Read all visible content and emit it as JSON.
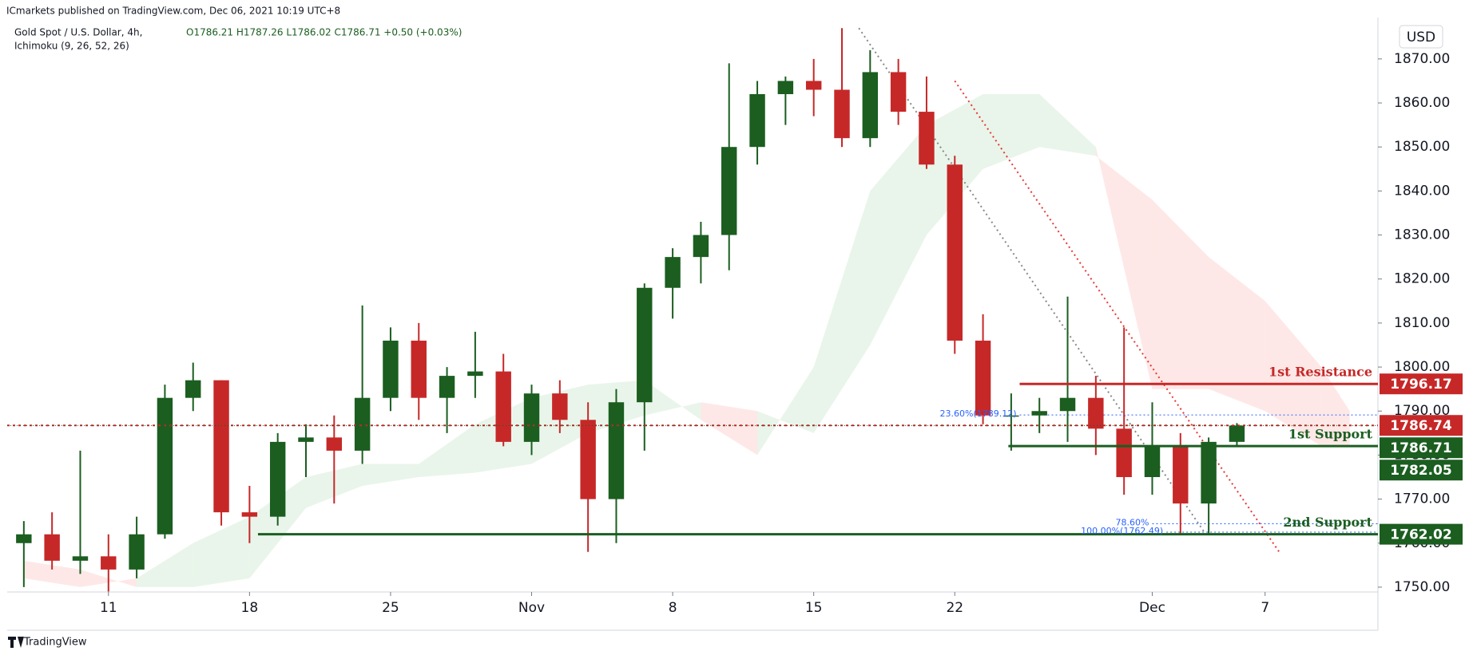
{
  "header": {
    "published": "ICmarkets published on TradingView.com, Dec 06, 2021 10:19 UTC+8",
    "symbol": "Gold Spot / U.S. Dollar, 4h,",
    "indicator": "Ichimoku (9, 26, 52, 26)",
    "ohlc_text": "O1786.21 H1787.26 L1786.02 C1786.71 +0.50 (+0.03%)",
    "currency": "USD",
    "footer": "TradingView"
  },
  "chart_data": {
    "type": "candlestick",
    "up_color": "#1b5e20",
    "down_color": "#c62828",
    "x": [
      -3,
      -2,
      -1,
      0,
      1,
      2,
      3,
      4,
      5,
      6,
      7,
      8,
      9,
      10,
      11,
      12,
      13,
      14,
      15,
      16,
      17,
      18,
      19,
      20,
      21,
      22,
      23,
      24,
      25,
      26,
      27,
      28,
      29,
      30,
      31,
      32,
      33,
      34,
      35,
      36,
      37,
      38,
      39,
      40
    ],
    "open": [
      1760,
      1762,
      1756,
      1757,
      1754,
      1762,
      1793,
      1797,
      1767,
      1766,
      1783,
      1784,
      1781,
      1793,
      1806,
      1793,
      1798,
      1799,
      1783,
      1794,
      1788,
      1770,
      1792,
      1818,
      1825,
      1830,
      1850,
      1862,
      1865,
      1863,
      1852,
      1867,
      1858,
      1846,
      1806,
      1789,
      1789,
      1790,
      1793,
      1786,
      1775,
      1782,
      1769,
      1783
    ],
    "high": [
      1765,
      1767,
      1781,
      1762,
      1766,
      1796,
      1801,
      1797,
      1773,
      1785,
      1787,
      1789,
      1814,
      1809,
      1810,
      1800,
      1808,
      1803,
      1796,
      1797,
      1792,
      1795,
      1819,
      1827,
      1833,
      1869,
      1865,
      1866,
      1870,
      1877,
      1872,
      1870,
      1866,
      1848,
      1812,
      1794,
      1793,
      1816,
      1798,
      1809,
      1792,
      1785,
      1784,
      1787.26
    ],
    "low": [
      1750,
      1754,
      1753,
      1749,
      1752,
      1761,
      1790,
      1764,
      1760,
      1764,
      1775,
      1769,
      1778,
      1790,
      1788,
      1785,
      1793,
      1782,
      1780,
      1785,
      1758,
      1760,
      1781,
      1811,
      1819,
      1822,
      1846,
      1855,
      1857,
      1850,
      1850,
      1855,
      1845,
      1803,
      1787,
      1781,
      1785,
      1783,
      1780,
      1771,
      1771,
      1762,
      1762,
      1782
    ],
    "close": [
      1762,
      1756,
      1757,
      1754,
      1762,
      1793,
      1797,
      1767,
      1766,
      1783,
      1784,
      1781,
      1793,
      1806,
      1793,
      1798,
      1799,
      1783,
      1794,
      1788,
      1770,
      1792,
      1818,
      1825,
      1830,
      1850,
      1862,
      1865,
      1863,
      1852,
      1867,
      1858,
      1846,
      1806,
      1789,
      1789,
      1790,
      1793,
      1786,
      1775,
      1782,
      1769,
      1783,
      1786.71
    ],
    "cloud": {
      "x": [
        -3,
        -1,
        1,
        3,
        5,
        7,
        9,
        11,
        13,
        15,
        17,
        19,
        21,
        23,
        25,
        27,
        29,
        31,
        33,
        35,
        37,
        39,
        41,
        43,
        44
      ],
      "span_a": [
        1752,
        1750,
        1752,
        1760,
        1766,
        1775,
        1778,
        1778,
        1787,
        1793,
        1796,
        1797,
        1788,
        1780,
        1800,
        1840,
        1855,
        1862,
        1862,
        1850,
        1795,
        1795,
        1790,
        1782,
        1782
      ],
      "span_b": [
        1756,
        1754,
        1750,
        1750,
        1752,
        1768,
        1773,
        1775,
        1776,
        1778,
        1785,
        1789,
        1792,
        1790,
        1785,
        1805,
        1830,
        1845,
        1850,
        1848,
        1838,
        1825,
        1815,
        1800,
        1790
      ],
      "up_color": "rgba(76,175,80,0.12)",
      "down_color": "rgba(244,67,54,0.12)"
    },
    "levels": [
      {
        "name": "1st Resistance",
        "price": 1796.17,
        "from": 32.3,
        "color": "#c62828",
        "style": "solid"
      },
      {
        "price": 1786.74,
        "color": "#c62828",
        "style": "dotted"
      },
      {
        "name": "1st Support",
        "price": 1782.05,
        "from": 31.9,
        "color": "#1b5e20",
        "style": "solid"
      },
      {
        "name": "2nd Support",
        "price": 1762.02,
        "from": 5.3,
        "color": "#1b5e20",
        "style": "solid"
      }
    ],
    "fib": [
      {
        "name": "23.60%(1789.12)",
        "price": 1789.12,
        "from": 32.3
      },
      {
        "name": "78.60%",
        "price": 1764.4,
        "from": 37.0
      },
      {
        "name": "100.00%(1762.49)",
        "price": 1762.49,
        "from": 37.5
      }
    ],
    "trendlines": [
      {
        "from": [
          30.0,
          1865
        ],
        "to": [
          41.5,
          1758
        ],
        "color": "#e53935"
      },
      {
        "from": [
          26.6,
          1877
        ],
        "to": [
          38.9,
          1762
        ],
        "color": "#888888"
      }
    ],
    "xlim": [
      -3.59,
      45.0
    ],
    "ylim": [
      1748.9,
      1879.4
    ],
    "xticks": [
      {
        "value": 0,
        "label": "11"
      },
      {
        "value": 5,
        "label": "18"
      },
      {
        "value": 10,
        "label": "25"
      },
      {
        "value": 15,
        "label": "Nov"
      },
      {
        "value": 20,
        "label": "8"
      },
      {
        "value": 25,
        "label": "15"
      },
      {
        "value": 30,
        "label": "22"
      },
      {
        "value": 37,
        "label": "Dec"
      },
      {
        "value": 41,
        "label": "7"
      }
    ],
    "yticks": [
      {
        "value": 1750,
        "label": "1750.00"
      },
      {
        "value": 1760,
        "label": "1760.00"
      },
      {
        "value": 1770,
        "label": "1770.00"
      },
      {
        "value": 1780,
        "label": "1780.00"
      },
      {
        "value": 1790,
        "label": "1790.00"
      },
      {
        "value": 1800,
        "label": "1800.00"
      },
      {
        "value": 1810,
        "label": "1810.00"
      },
      {
        "value": 1820,
        "label": "1820.00"
      },
      {
        "value": 1830,
        "label": "1830.00"
      },
      {
        "value": 1840,
        "label": "1840.00"
      },
      {
        "value": 1850,
        "label": "1850.00"
      },
      {
        "value": 1860,
        "label": "1860.00"
      },
      {
        "value": 1870,
        "label": "1870.00"
      }
    ]
  }
}
